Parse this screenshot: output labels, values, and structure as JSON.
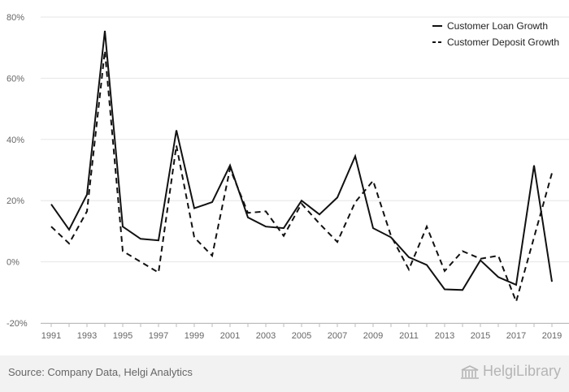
{
  "chart_data": {
    "type": "line",
    "x": [
      "1991",
      "1992",
      "1993",
      "1994",
      "1995",
      "1996",
      "1997",
      "1998",
      "1999",
      "2000",
      "2001",
      "2002",
      "2003",
      "2004",
      "2005",
      "2006",
      "2007",
      "2008",
      "2009",
      "2010",
      "2011",
      "2012",
      "2013",
      "2014",
      "2015",
      "2016",
      "2017",
      "2018",
      "2019"
    ],
    "x_tick_labels": [
      "1991",
      "1993",
      "1995",
      "1997",
      "1999",
      "2001",
      "2003",
      "2005",
      "2007",
      "2009",
      "2011",
      "2013",
      "2015",
      "2017",
      "2019"
    ],
    "series": [
      {
        "name": "Customer Loan Growth",
        "style": "solid",
        "values": [
          18.8,
          10.5,
          22.0,
          75.5,
          11.5,
          7.5,
          7.0,
          43.0,
          17.5,
          19.5,
          31.5,
          14.5,
          11.5,
          11.0,
          20.0,
          15.5,
          21.0,
          34.5,
          11.0,
          8.0,
          1.5,
          -1.0,
          -9.0,
          -9.2,
          0.5,
          -5.0,
          -7.5,
          31.5,
          -6.5
        ]
      },
      {
        "name": "Customer Deposit Growth",
        "style": "dashed",
        "values": [
          11.5,
          6.0,
          16.5,
          69.0,
          3.5,
          0.0,
          -3.5,
          38.0,
          8.0,
          2.0,
          30.5,
          16.0,
          16.5,
          8.5,
          19.0,
          12.5,
          6.5,
          19.5,
          26.5,
          8.5,
          -2.5,
          11.5,
          -3.0,
          3.5,
          1.0,
          2.0,
          -13.0,
          8.0,
          29.0
        ]
      }
    ],
    "y_ticks": [
      "80%",
      "60%",
      "40%",
      "20%",
      "0%",
      "-20%"
    ],
    "y_tick_values": [
      80,
      60,
      40,
      20,
      0,
      -20
    ],
    "ylim": [
      -20,
      80
    ],
    "grid": true,
    "legend_position": "top-right"
  },
  "colors": {
    "line": "#111111",
    "grid": "#e6e6e6",
    "axis": "#bbbbbb",
    "panel": "#ffffff",
    "page": "#f2f2f2"
  },
  "footer": {
    "source": "Source: Company Data, Helgi Analytics",
    "brand": "HelgiLibrary"
  }
}
